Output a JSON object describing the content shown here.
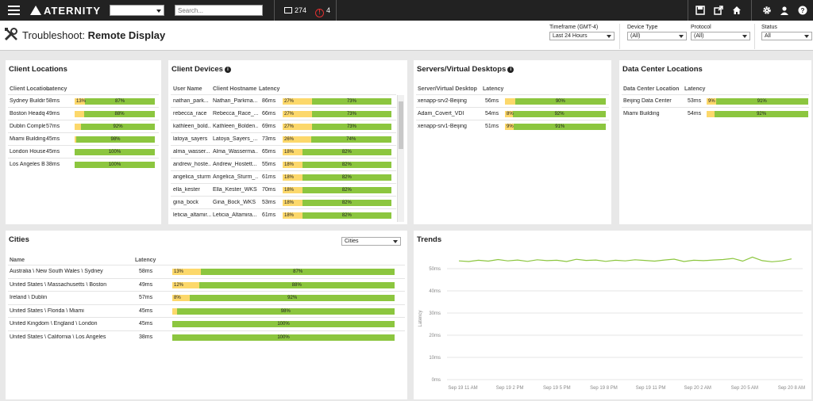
{
  "topbar": {
    "logo": "ATERNITY",
    "search_placeholder": "Search...",
    "devices_count": "274",
    "alerts_count": "4",
    "icons": [
      "save-icon",
      "export-icon",
      "home-icon",
      "gear-icon",
      "user-icon",
      "help-icon"
    ]
  },
  "header": {
    "title_prefix": "Troubleshoot:",
    "title_main": "Remote Display",
    "timeframe_label": "Timeframe (GMT-4)",
    "timeframe_value": "Last 24 Hours",
    "device_type_label": "Device Type",
    "device_type_value": "(All)",
    "protocol_label": "Protocol",
    "protocol_value": "(All)",
    "status_label": "Status",
    "status_value": "All"
  },
  "client_locations": {
    "title": "Client Locations",
    "headers": [
      "Client Location",
      "Latency"
    ],
    "rows": [
      {
        "name": "Sydney Building",
        "latency": "58ms",
        "low": 13,
        "high": 87,
        "low_label": "13%",
        "high_label": "87%"
      },
      {
        "name": "Boston Headqu...",
        "latency": "49ms",
        "low": 12,
        "high": 88,
        "low_label": "",
        "high_label": "88%"
      },
      {
        "name": "Dublin Complex",
        "latency": "57ms",
        "low": 8,
        "high": 92,
        "low_label": "",
        "high_label": "92%"
      },
      {
        "name": "Miami Building",
        "latency": "45ms",
        "low": 2,
        "high": 98,
        "low_label": "",
        "high_label": "98%"
      },
      {
        "name": "London House",
        "latency": "45ms",
        "low": 0,
        "high": 100,
        "low_label": "",
        "high_label": "100%"
      },
      {
        "name": "Los Angeles Bui...",
        "latency": "38ms",
        "low": 0,
        "high": 100,
        "low_label": "",
        "high_label": "100%"
      }
    ]
  },
  "client_devices": {
    "title": "Client Devices",
    "headers": [
      "User Name",
      "Client Hostname",
      "Latency"
    ],
    "rows": [
      {
        "user": "nathan_park...",
        "host": "Nathan_Parkma...",
        "latency": "86ms",
        "low": 27,
        "high": 73,
        "low_label": "27%",
        "high_label": "73%"
      },
      {
        "user": "rebecca_race",
        "host": "Rebecca_Race_...",
        "latency": "66ms",
        "low": 27,
        "high": 73,
        "low_label": "27%",
        "high_label": "73%"
      },
      {
        "user": "kathleen_bold...",
        "host": "Kathleen_Bolden...",
        "latency": "69ms",
        "low": 27,
        "high": 73,
        "low_label": "27%",
        "high_label": "73%"
      },
      {
        "user": "latoya_sayers",
        "host": "Latoya_Sayers_...",
        "latency": "73ms",
        "low": 26,
        "high": 74,
        "low_label": "26%",
        "high_label": "74%"
      },
      {
        "user": "alma_wasser...",
        "host": "Alma_Wasserma...",
        "latency": "65ms",
        "low": 18,
        "high": 82,
        "low_label": "18%",
        "high_label": "82%"
      },
      {
        "user": "andrew_hoste...",
        "host": "Andrew_Hostett...",
        "latency": "55ms",
        "low": 18,
        "high": 82,
        "low_label": "18%",
        "high_label": "82%"
      },
      {
        "user": "angelica_sturm",
        "host": "Angelica_Sturm_...",
        "latency": "61ms",
        "low": 18,
        "high": 82,
        "low_label": "18%",
        "high_label": "82%"
      },
      {
        "user": "ella_kester",
        "host": "Ella_Kester_WKS",
        "latency": "70ms",
        "low": 18,
        "high": 82,
        "low_label": "18%",
        "high_label": "82%"
      },
      {
        "user": "gina_bock",
        "host": "Gina_Bock_WKS",
        "latency": "53ms",
        "low": 18,
        "high": 82,
        "low_label": "18%",
        "high_label": "82%"
      },
      {
        "user": "leticia_altamir...",
        "host": "Leticia_Altamira...",
        "latency": "61ms",
        "low": 18,
        "high": 82,
        "low_label": "18%",
        "high_label": "82%"
      }
    ]
  },
  "servers": {
    "title": "Servers/Virtual Desktops",
    "headers": [
      "Server/Virtual Desktop",
      "Latency"
    ],
    "rows": [
      {
        "name": "xenapp-srv2-Beijing",
        "latency": "56ms",
        "low": 10,
        "high": 90,
        "low_label": "",
        "high_label": "90%"
      },
      {
        "name": "Adam_Covert_VDI",
        "latency": "54ms",
        "low": 8,
        "high": 92,
        "low_label": "8%",
        "high_label": "92%"
      },
      {
        "name": "xenapp-srv1-Beijing",
        "latency": "51ms",
        "low": 9,
        "high": 91,
        "low_label": "9%",
        "high_label": "91%"
      }
    ]
  },
  "data_centers": {
    "title": "Data Center Locations",
    "headers": [
      "Data Center Location",
      "Latency"
    ],
    "rows": [
      {
        "name": "Beijing Data Center",
        "latency": "53ms",
        "low": 9,
        "high": 91,
        "low_label": "9%",
        "high_label": "91%"
      },
      {
        "name": "Miami Building",
        "latency": "54ms",
        "low": 8,
        "high": 92,
        "low_label": "",
        "high_label": "92%"
      }
    ]
  },
  "cities": {
    "title": "Cities",
    "selector": "Cities",
    "headers": [
      "Name",
      "Latency"
    ],
    "rows": [
      {
        "name": "Australia \\ New South Wales \\ Sydney",
        "latency": "58ms",
        "low": 13,
        "high": 87,
        "low_label": "13%",
        "high_label": "87%"
      },
      {
        "name": "United States \\ Massachusetts \\ Boston",
        "latency": "49ms",
        "low": 12,
        "high": 88,
        "low_label": "12%",
        "high_label": "88%"
      },
      {
        "name": "Ireland \\ Dublin",
        "latency": "57ms",
        "low": 8,
        "high": 92,
        "low_label": "8%",
        "high_label": "92%"
      },
      {
        "name": "United States \\ Florida \\ Miami",
        "latency": "45ms",
        "low": 2,
        "high": 98,
        "low_label": "",
        "high_label": "98%"
      },
      {
        "name": "United Kingdom \\ England \\ London",
        "latency": "45ms",
        "low": 0,
        "high": 100,
        "low_label": "",
        "high_label": "100%"
      },
      {
        "name": "United States \\ California \\ Los Angeles",
        "latency": "38ms",
        "low": 0,
        "high": 100,
        "low_label": "",
        "high_label": "100%"
      }
    ]
  },
  "chart_data": {
    "type": "line",
    "title": "Trends",
    "ylabel": "Latency",
    "ylim": [
      0,
      55
    ],
    "yticks": [
      "0ms",
      "10ms",
      "20ms",
      "30ms",
      "40ms",
      "50ms"
    ],
    "xticks": [
      "Sep 19 11 AM",
      "Sep 19 2 PM",
      "Sep 19 5 PM",
      "Sep 19 8 PM",
      "Sep 19 11 PM",
      "Sep 20 2 AM",
      "Sep 20 5 AM",
      "Sep 20 8 AM"
    ],
    "series": [
      {
        "values": [
          53.5,
          53.2,
          53.8,
          53.4,
          54.1,
          53.5,
          53.9,
          53.3,
          54,
          53.6,
          53.8,
          53.2,
          54.2,
          53.7,
          53.9,
          53.3,
          53.8,
          53.5,
          54,
          53.7,
          53.4,
          53.9,
          54.3,
          53.2,
          53.8,
          53.6,
          53.9,
          54.1,
          54.6,
          53.4,
          55.2,
          53.6,
          53.1,
          53.5,
          54.4
        ]
      }
    ],
    "color": "#8cc63f",
    "grid": true
  }
}
